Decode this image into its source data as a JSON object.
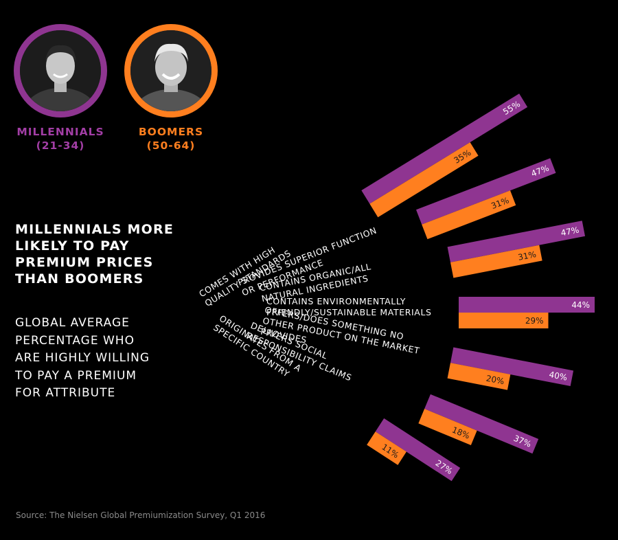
{
  "groups": {
    "millennials": {
      "name": "MILLENNIALS",
      "ages": "(21-34)",
      "color": "#8f3591"
    },
    "boomers": {
      "name": "BOOMERS",
      "ages": "(50-64)",
      "color": "#ff7f1f"
    }
  },
  "headline": "MILLENNIALS MORE\nLIKELY TO PAY\nPREMIUM PRICES\nTHAN BOOMERS",
  "subhead": "GLOBAL AVERAGE\nPERCENTAGE WHO\nARE HIGHLY WILLING\nTO PAY A PREMIUM\nFOR ATTRIBUTE",
  "source": "Source: The Nielsen Global Premiumization Survey, Q1 2016",
  "chart_data": {
    "type": "bar",
    "categories": [
      "COMES WITH HIGH\nQUALITY STANDARDS",
      "PROVIDES SUPERIOR FUNCTION\nOR PERFORMANCE",
      "CONTAINS ORGANIC/ALL\nNATURAL INGREDIENTS",
      "CONTAINS ENVIRONMENTALLY\nFRIENDLY/SUSTAINABLE MATERIALS",
      "OFFERS/DOES SOMETHING NO\nOTHER PRODUCT ON THE MARKET\nPROVIDES",
      "DELIVERS SOCIAL\nRESPONSIBILITY CLAIMS",
      "ORIGINATES FROM A\nSPECIFIC COUNTRY"
    ],
    "series": [
      {
        "name": "MILLENNIALS",
        "values": [
          55,
          47,
          47,
          44,
          40,
          37,
          27
        ],
        "labels": [
          "55%",
          "47%",
          "47%",
          "44%",
          "40%",
          "37%",
          "27%"
        ],
        "color": "#8f3591"
      },
      {
        "name": "BOOMERS",
        "values": [
          35,
          31,
          31,
          29,
          20,
          18,
          11
        ],
        "labels": [
          "35%",
          "31%",
          "31%",
          "29%",
          "20%",
          "18%",
          "11%"
        ],
        "color": "#ff7f1f"
      }
    ]
  }
}
